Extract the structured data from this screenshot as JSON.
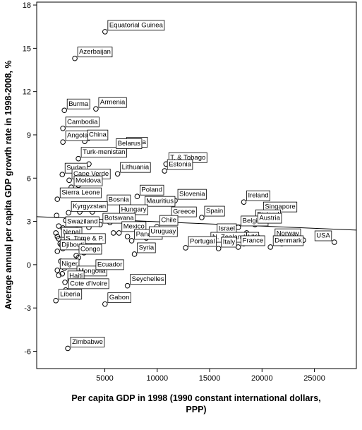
{
  "chart_data": {
    "type": "scatter",
    "xlabel": [
      "Per capita GDP in 1998 (1990 constant international dollars,",
      "PPP)"
    ],
    "ylabel": "Average annual per capita GDP growth rate in 1998-2008, %",
    "xlim": [
      -1500,
      29000
    ],
    "ylim": [
      -7.2,
      18.2
    ],
    "xticks": [
      5000,
      10000,
      15000,
      20000,
      25000
    ],
    "yticks": [
      -6,
      -3,
      0,
      3,
      6,
      9,
      12,
      15,
      18
    ],
    "color": "#000000",
    "x": [
      5020,
      2140,
      4150,
      1140,
      1000,
      1000,
      3080,
      6820,
      2480,
      5820,
      10840,
      10700,
      940,
      1600,
      6220,
      1800,
      470,
      11700,
      18260,
      8090,
      4950,
      8560,
      19870,
      1540,
      6150,
      11100,
      14250,
      19130,
      1000,
      4550,
      17730,
      19330,
      600,
      6360,
      15450,
      9970,
      23950,
      870,
      7560,
      8960,
      14850,
      470,
      18260,
      26900,
      17730,
      20800,
      12710,
      15850,
      7830,
      2270,
      470,
      2070,
      3880,
      7160,
      1200,
      1270,
      5020,
      330,
      1470,
      330,
      470,
      740,
      1000,
      1470,
      1810,
      2340,
      2810,
      3140,
      3480,
      3810,
      4480,
      5490,
      5820,
      800,
      1140,
      600,
      1810,
      2480,
      3010,
      3480,
      4480,
      8500,
      9500,
      18530,
      19530,
      21880,
      22210,
      7160,
      600,
      400,
      1270,
      2610,
      3140,
      2480,
      1940,
      3480,
      940
    ],
    "values": [
      16.15,
      14.3,
      10.8,
      10.7,
      9.45,
      8.5,
      8.55,
      8.05,
      7.35,
      7.95,
      6.98,
      6.5,
      6.25,
      5.85,
      6.3,
      5.37,
      4.54,
      4.44,
      4.34,
      4.73,
      4.05,
      3.95,
      3.56,
      3.6,
      3.37,
      3.22,
      3.27,
      3.02,
      2.54,
      2.78,
      2.59,
      2.78,
      1.8,
      2.2,
      2.05,
      2.63,
      1.7,
      1.37,
      1.66,
      1.85,
      1.46,
      0.93,
      1.46,
      1.56,
      1.22,
      1.22,
      1.17,
      1.12,
      0.73,
      0.63,
      -0.39,
      -0.88,
      -0.44,
      -1.46,
      -1.22,
      -1.76,
      -2.73,
      -2.49,
      -5.8,
      2.2,
      1.95,
      1.46,
      1.12,
      2.29,
      2.1,
      2.44,
      2.93,
      1.71,
      2.59,
      3.66,
      4.15,
      2.93,
      2.2,
      0.24,
      -0.24,
      -0.73,
      0,
      0.49,
      0.83,
      1.46,
      0.98,
      2.44,
      2.2,
      2.2,
      1.95,
      1.46,
      1.71,
      1.95,
      2.68,
      3.41,
      3.07,
      3.66,
      5.02,
      5.51,
      6.59,
      6.98,
      -0.63
    ],
    "labels": [
      "Equatorial Guinea",
      "Azerbaijan",
      "Armenia",
      "Burma",
      "Cambodia",
      "Angola",
      "China",
      "Latvia",
      "Turk-menistan",
      "Belarus",
      "T. & Tobago",
      "Estonia",
      "Sudan",
      "Cape Verde",
      "Lithuania",
      "Moldova",
      "Sierra Leone",
      "Slovenia",
      "Ireland",
      "Poland",
      "Bosnia",
      "Mauritius",
      "Singapore",
      "Kyrgyzstan",
      "Hungary",
      "Greece",
      "Spain",
      "Finland",
      "Swaziland",
      "Botswana",
      "Belgium",
      "Austria",
      "Nepal",
      "Mexico",
      "Israel",
      "Chile",
      "Norway",
      "S. Tome & P.",
      "Panama",
      "Uruguay",
      "N. Zealand",
      "Djibouti",
      "UK",
      "USA",
      "France",
      "Denmark",
      "Portugal",
      "Italy",
      "Syria",
      "Congo",
      "Niger",
      "Mongolia",
      "Ecuador",
      "Seychelles",
      "Haiti",
      "Cote d'Ivoire",
      "Gabon",
      "Liberia",
      "Zimbabwe",
      null,
      null,
      null,
      null,
      null,
      null,
      null,
      null,
      null,
      null,
      null,
      null,
      null,
      null,
      null,
      null,
      null,
      null,
      null,
      null,
      null,
      null,
      null,
      null,
      null,
      null,
      null,
      null,
      null,
      null,
      null,
      null,
      null,
      null,
      null,
      null,
      null,
      null
    ],
    "fit_line": {
      "x": [
        -1500,
        29000
      ],
      "y": [
        3.33,
        2.4
      ]
    }
  }
}
